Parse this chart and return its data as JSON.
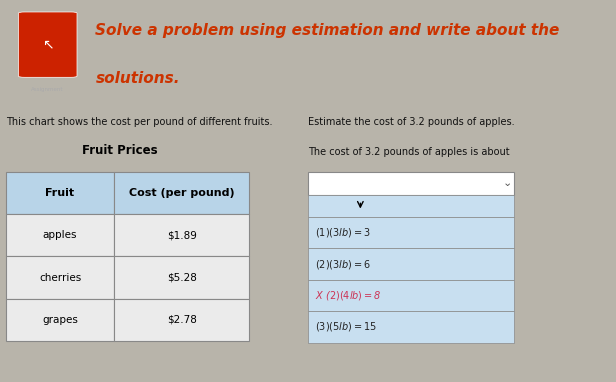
{
  "header_title_line1": "Solve a problem using estimation and write about the",
  "header_title_line2": "solutions.",
  "header_bg": "#1a1a2e",
  "header_text_color": "#cc3300",
  "header_font_size": 11,
  "body_bg": "#b8b4aa",
  "subtitle_left": "This chart shows the cost per pound of different fruits.",
  "subtitle_right": "Estimate the cost of 3.2 pounds of apples.",
  "subtitle_right2": "The cost of 3.2 pounds of apples is about",
  "table_title": "Fruit Prices",
  "table_header": [
    "Fruit",
    "Cost (per pound)"
  ],
  "table_rows": [
    [
      "apples",
      "$1.89"
    ],
    [
      "cherries",
      "$5.28"
    ],
    [
      "grapes",
      "$2.78"
    ]
  ],
  "table_header_bg": "#b8d4e8",
  "table_row_bg": "#ebebeb",
  "table_border_color": "#888888",
  "dropdown_options": [
    "($1)(3 lb) = $3",
    "($2)(3 lb) = $6",
    "X ($2)(4 lb) = $8",
    "($3)(5 lb) = $15"
  ],
  "dropdown_selected_color": "#cc3355",
  "dropdown_bg": "#c8dff0",
  "dropdown_selected_bg": "#c8dff0",
  "dropdown_text_color": "#222222",
  "logo_bg": "#cc2200",
  "label_color": "#111111",
  "cursor_color": "#222222"
}
